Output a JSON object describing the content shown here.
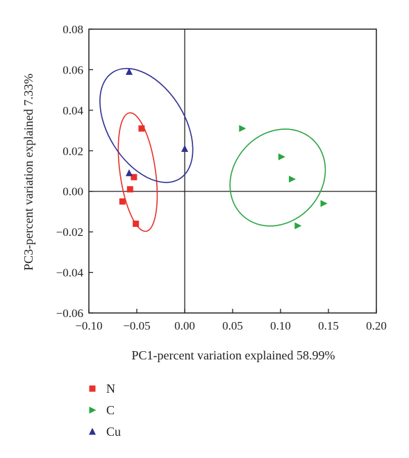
{
  "chart_data": {
    "type": "scatter",
    "title": "",
    "xlabel": "PC1-percent variation explained 58.99%",
    "ylabel": "PC3-percent variation explained 7.33%",
    "xlim": [
      -0.1,
      0.2
    ],
    "ylim": [
      -0.06,
      0.08
    ],
    "x_ticks": [
      -0.1,
      -0.05,
      0.0,
      0.05,
      0.1,
      0.15,
      0.2
    ],
    "x_tick_labels": [
      "−0.10",
      "−0.05",
      "0.00",
      "0.05",
      "0.10",
      "0.15",
      "0.20"
    ],
    "y_ticks": [
      -0.06,
      -0.04,
      -0.02,
      0.0,
      0.02,
      0.04,
      0.06,
      0.08
    ],
    "y_tick_labels": [
      "−0.06",
      "−0.04",
      "−0.02",
      "0.00",
      "0.02",
      "0.04",
      "0.06",
      "0.08"
    ],
    "grid": false,
    "zero_lines": true,
    "legend_position": "bottom-left",
    "series": [
      {
        "name": "N",
        "marker": "square",
        "color": "#e8312a",
        "points": [
          {
            "x": -0.045,
            "y": 0.031
          },
          {
            "x": -0.053,
            "y": 0.007
          },
          {
            "x": -0.057,
            "y": 0.001
          },
          {
            "x": -0.065,
            "y": -0.005
          },
          {
            "x": -0.051,
            "y": -0.016
          }
        ],
        "ellipse": {
          "cx": -0.049,
          "cy": 0.0095,
          "rx": 0.0185,
          "ry": 0.0295,
          "rotate": -8
        }
      },
      {
        "name": "C",
        "marker": "triangle-right",
        "color": "#2aa541",
        "points": [
          {
            "x": 0.06,
            "y": 0.031
          },
          {
            "x": 0.101,
            "y": 0.017
          },
          {
            "x": 0.112,
            "y": 0.006
          },
          {
            "x": 0.145,
            "y": -0.006
          },
          {
            "x": 0.118,
            "y": -0.017
          }
        ],
        "ellipse": {
          "cx": 0.097,
          "cy": 0.0068,
          "rx": 0.046,
          "ry": 0.0255,
          "rotate": 42
        }
      },
      {
        "name": "Cu",
        "marker": "triangle-up",
        "color": "#2e3192",
        "points": [
          {
            "x": -0.058,
            "y": 0.059
          },
          {
            "x": -0.058,
            "y": 0.009
          },
          {
            "x": 0.0,
            "y": 0.021
          }
        ],
        "ellipse": {
          "cx": -0.04,
          "cy": 0.0325,
          "rx": 0.0398,
          "ry": 0.031,
          "rotate": -32
        }
      }
    ]
  }
}
